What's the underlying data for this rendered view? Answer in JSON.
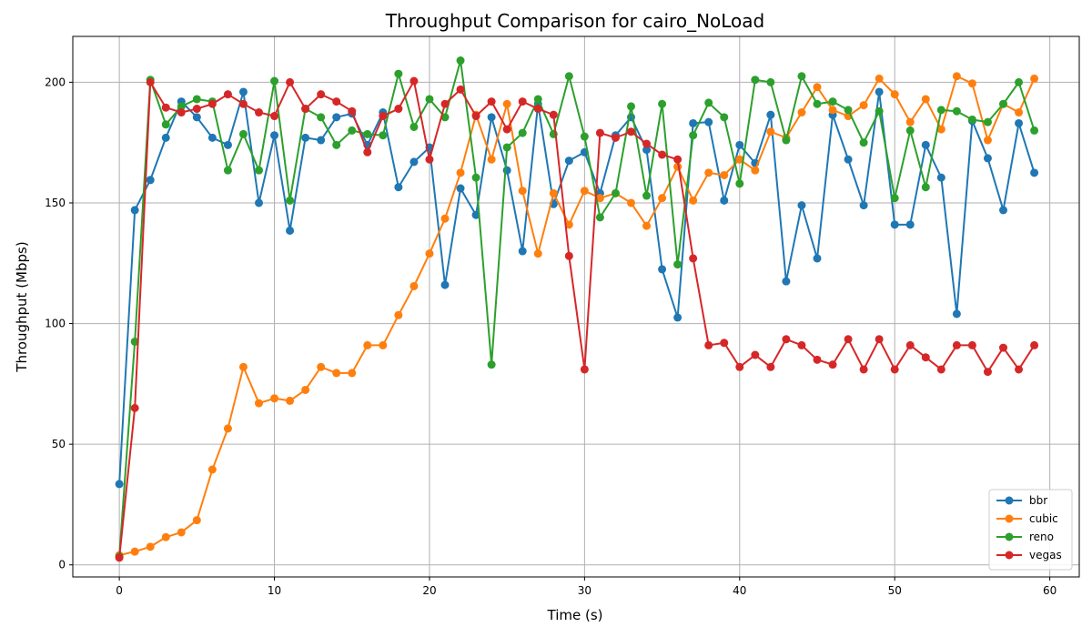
{
  "chart_data": {
    "type": "line",
    "title": "Throughput Comparison for cairo_NoLoad",
    "xlabel": "Time (s)",
    "ylabel": "Throughput (Mbps)",
    "xlim": [
      -3,
      61.9
    ],
    "ylim": [
      -5,
      219
    ],
    "xticks": [
      0,
      10,
      20,
      30,
      40,
      50,
      60
    ],
    "yticks": [
      0,
      50,
      100,
      150,
      200
    ],
    "grid": true,
    "legend_position": "lower-right",
    "x": [
      0,
      1,
      2,
      3,
      4,
      5,
      6,
      7,
      8,
      9,
      10,
      11,
      12,
      13,
      14,
      15,
      16,
      17,
      18,
      19,
      20,
      21,
      22,
      23,
      24,
      25,
      26,
      27,
      28,
      29,
      30,
      31,
      32,
      33,
      34,
      35,
      36,
      37,
      38,
      39,
      40,
      41,
      42,
      43,
      44,
      45,
      46,
      47,
      48,
      49,
      50,
      51,
      52,
      53,
      54,
      55,
      56,
      57,
      58,
      59
    ],
    "series": [
      {
        "name": "bbr",
        "color": "#1f77b4",
        "values": [
          33.5,
          147,
          159.5,
          177,
          192,
          185.5,
          177,
          174,
          196,
          150,
          178,
          138.5,
          177,
          176,
          185.5,
          187,
          174,
          187.5,
          156.5,
          167,
          173,
          116,
          156,
          145,
          185.5,
          163.5,
          130,
          191,
          149.5,
          167.5,
          171,
          154,
          178,
          185.5,
          172,
          122.5,
          102.5,
          183,
          183.5,
          151,
          174,
          166.5,
          186.5,
          117.5,
          149,
          127,
          186.5,
          168,
          149,
          196,
          141,
          141,
          174,
          160.5,
          104,
          184,
          168.5,
          147,
          183,
          162.5
        ]
      },
      {
        "name": "cubic",
        "color": "#ff7f0e",
        "values": [
          4,
          5.5,
          7.5,
          11.5,
          13.5,
          18.5,
          39.5,
          56.5,
          82,
          67,
          69,
          68,
          72.5,
          82,
          79.5,
          79.5,
          91,
          91,
          103.5,
          115.5,
          129,
          143.5,
          162.5,
          186.5,
          168,
          191,
          155,
          129,
          154,
          141,
          155,
          152,
          154,
          150,
          140.5,
          152,
          165,
          151,
          162.5,
          161.5,
          168,
          163.5,
          179.5,
          177,
          187.5,
          198,
          188.5,
          186,
          190.5,
          201.5,
          195,
          183.5,
          193,
          180.5,
          202.5,
          199.5,
          176,
          191,
          187.5,
          201.5
        ]
      },
      {
        "name": "reno",
        "color": "#2ca02c",
        "values": [
          3.5,
          92.5,
          201,
          182.5,
          190,
          193,
          192,
          163.5,
          178.5,
          163.5,
          200.5,
          151,
          189,
          185.5,
          174,
          180,
          178.5,
          178,
          203.5,
          181.5,
          193,
          185.5,
          209,
          160.5,
          83,
          173,
          179,
          193,
          178.5,
          202.5,
          177.5,
          144,
          154,
          190,
          153,
          191,
          124.5,
          178,
          191.5,
          185.5,
          158,
          201,
          200,
          176,
          202.5,
          191,
          192,
          188.5,
          175,
          188,
          152,
          180,
          156.5,
          188.5,
          188,
          184.5,
          183.5,
          191,
          200,
          180
        ]
      },
      {
        "name": "vegas",
        "color": "#d62728",
        "values": [
          3,
          65,
          200,
          189.5,
          187.5,
          189,
          191,
          195,
          191,
          187.5,
          186,
          200,
          189,
          195,
          192,
          188,
          171,
          186,
          189,
          200.5,
          168,
          191,
          197,
          186,
          192,
          180.5,
          192,
          189,
          186.5,
          128,
          81,
          179,
          177,
          179.5,
          174.5,
          170,
          168,
          127,
          91,
          92,
          82,
          87,
          82,
          93.5,
          91,
          85,
          83,
          93.5,
          81,
          93.5,
          81,
          91,
          86,
          81,
          91,
          91,
          80,
          90,
          81,
          91
        ]
      }
    ]
  }
}
